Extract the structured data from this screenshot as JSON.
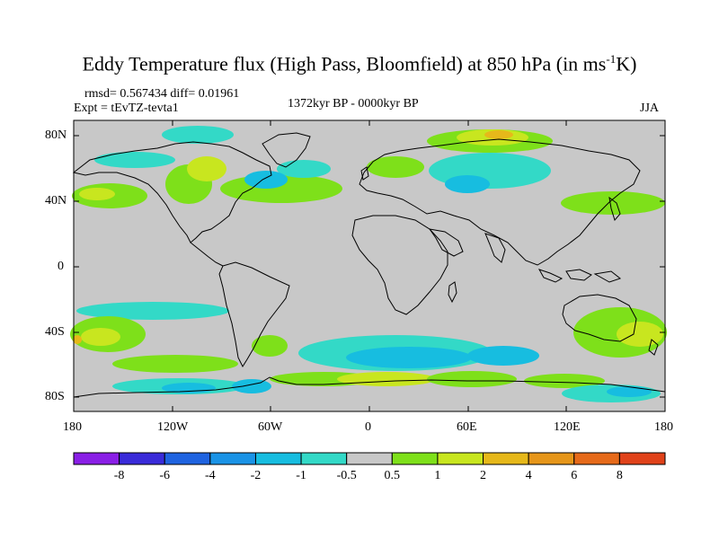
{
  "title": {
    "main": "Eddy Temperature flux (High Pass, Bloomfield) at 850 hPa (in ms",
    "sup": "-1",
    "tail": "K)"
  },
  "stats": "rmsd= 0.567434 diff= 0.01961",
  "experiment": "Expt = tEvTZ-tevta1",
  "period": "1372kyr BP - 0000kyr BP",
  "season": "JJA",
  "y_ticks": [
    "80N",
    "40N",
    "0",
    "40S",
    "80S"
  ],
  "x_ticks": [
    "180",
    "120W",
    "60W",
    "0",
    "60E",
    "120E",
    "180"
  ],
  "colorbar": {
    "labels": [
      "-8",
      "-6",
      "-4",
      "-2",
      "-1",
      "-0.5",
      "0.5",
      "1",
      "2",
      "4",
      "6",
      "8"
    ],
    "colors": [
      "#8a1fe6",
      "#3a2bd9",
      "#1f63e0",
      "#1a93e6",
      "#17bde0",
      "#33d9c7",
      "#c8c8c8",
      "#7ee01a",
      "#c8e61f",
      "#e6b81a",
      "#e6961a",
      "#e66a1a",
      "#e0421a"
    ]
  },
  "palette": {
    "ocean_neutral": "#c8c8c8",
    "coast": "#000000"
  }
}
